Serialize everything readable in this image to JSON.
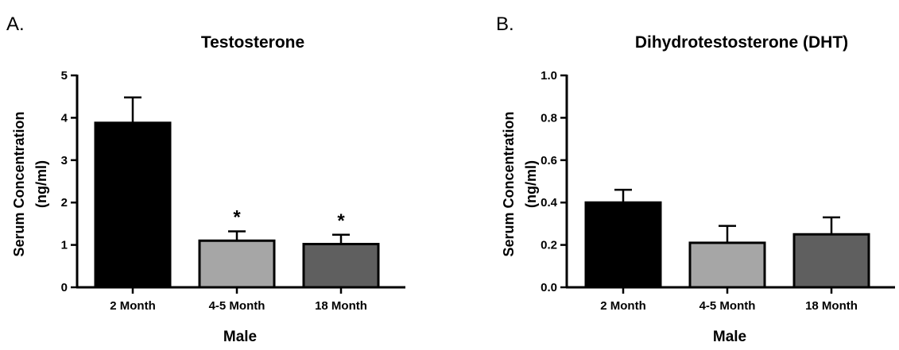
{
  "chart_data": [
    {
      "type": "bar",
      "panel_label": "A.",
      "title": "Testosterone",
      "xlabel": "Male",
      "ylabel_line1": "Serum  Concentration",
      "ylabel_line2": "(ng/ml)",
      "ylim": [
        0,
        5
      ],
      "yticks": [
        "0",
        "1",
        "2",
        "3",
        "4",
        "5"
      ],
      "categories": [
        "2 Month",
        "4-5 Month",
        "18 Month"
      ],
      "values": [
        3.88,
        1.1,
        1.02
      ],
      "errors": [
        0.6,
        0.22,
        0.22
      ],
      "colors": [
        "#000000",
        "#a6a6a6",
        "#5f5f5f"
      ],
      "annotations": [
        "",
        "*",
        "*"
      ],
      "grid": false
    },
    {
      "type": "bar",
      "panel_label": "B.",
      "title": "Dihydrotestosterone (DHT)",
      "xlabel": "Male",
      "ylabel_line1": "Serum  Concentration",
      "ylabel_line2": "(ng/ml)",
      "ylim": [
        0,
        1.0
      ],
      "yticks": [
        "0.0",
        "0.2",
        "0.4",
        "0.6",
        "0.8",
        "1.0"
      ],
      "categories": [
        "2 Month",
        "4-5 Month",
        "18 Month"
      ],
      "values": [
        0.4,
        0.21,
        0.25
      ],
      "errors": [
        0.06,
        0.08,
        0.08
      ],
      "colors": [
        "#000000",
        "#a6a6a6",
        "#5f5f5f"
      ],
      "annotations": [
        "",
        "",
        ""
      ],
      "grid": false
    }
  ]
}
